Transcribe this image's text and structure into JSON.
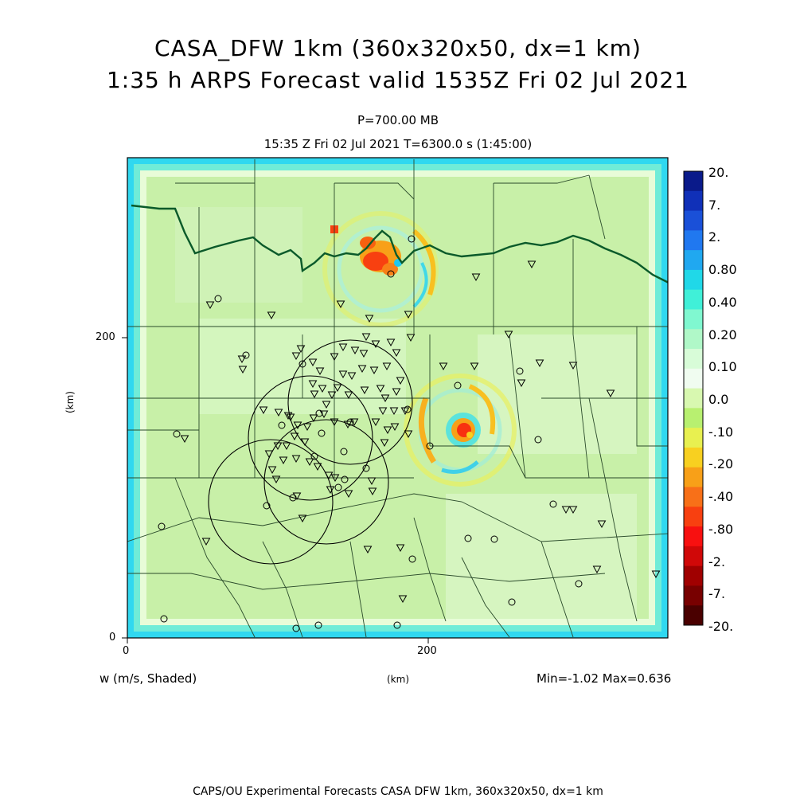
{
  "title": {
    "line1": "CASA_DFW 1km (360x320x50, dx=1 km)",
    "line2": "1:35 h ARPS Forecast valid 1535Z Fri 02 Jul 2021"
  },
  "subtitle": {
    "pressure": "P=700.00 MB",
    "time": "15:35 Z Fri 02 Jul 2021    T=6300.0 s (1:45:00)"
  },
  "axes": {
    "x_ticks": [
      "0",
      "200"
    ],
    "y_ticks": [
      "0",
      "200"
    ],
    "x_label": "(km)",
    "y_label": "(km)"
  },
  "variable_label": "w (m/s, Shaded)",
  "stats": "Min=-1.02  Max=0.636",
  "colorbar": {
    "labels": [
      "20.",
      "7.",
      "2.",
      "0.80",
      "0.40",
      "0.20",
      "0.10",
      "0.0",
      "-.10",
      "-.20",
      "-.40",
      "-.80",
      "-2.",
      "-7.",
      "-20."
    ],
    "colors": [
      "#0a1a8a",
      "#1030b8",
      "#1a50d8",
      "#2078f0",
      "#20a8f0",
      "#20d8e8",
      "#40f0d8",
      "#80f8d0",
      "#b0f8c8",
      "#d8fcd8",
      "#f0fcf0",
      "#d8f8b0",
      "#b8f070",
      "#e8f050",
      "#f8d020",
      "#f8a018",
      "#f87018",
      "#f84010",
      "#f81010",
      "#d00808",
      "#a00000",
      "#780000",
      "#4a0000"
    ]
  },
  "footer": "CAPS/OU Experimental Forecasts  CASA DFW 1km, 360x320x50, dx=1 km"
}
